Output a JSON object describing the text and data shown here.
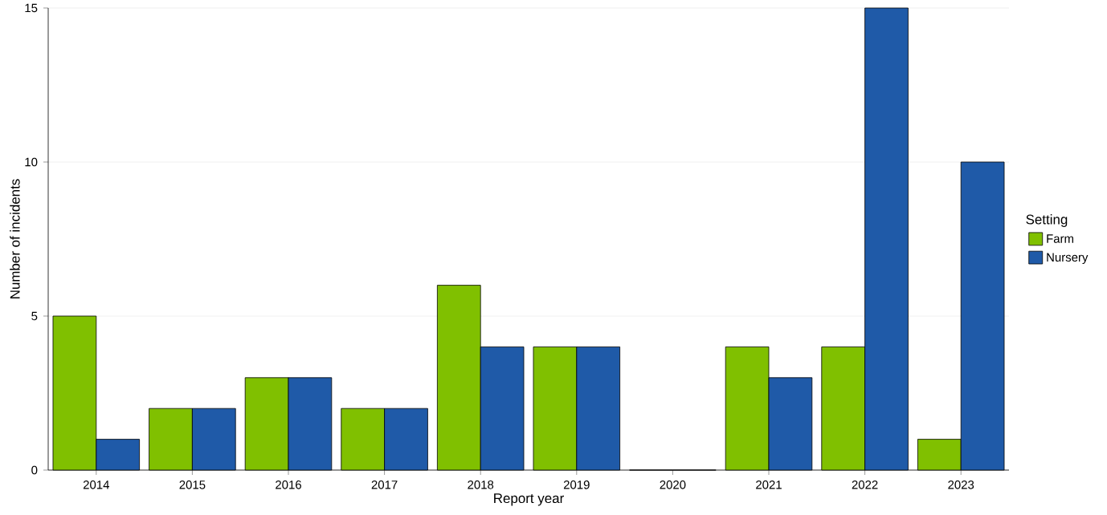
{
  "chart_data": {
    "type": "bar",
    "xlabel": "Report year",
    "ylabel": "Number of incidents",
    "legend_title": "Setting",
    "categories": [
      "2014",
      "2015",
      "2016",
      "2017",
      "2018",
      "2019",
      "2020",
      "2021",
      "2022",
      "2023"
    ],
    "series": [
      {
        "name": "Farm",
        "color": "#80c000",
        "values": [
          5,
          2,
          3,
          2,
          6,
          4,
          0,
          4,
          4,
          1
        ]
      },
      {
        "name": "Nursery",
        "color": "#1f5aa8",
        "values": [
          1,
          2,
          3,
          2,
          4,
          4,
          0,
          3,
          15,
          10
        ]
      }
    ],
    "ylim": [
      0,
      15
    ],
    "yticks": [
      0,
      5,
      10,
      15
    ],
    "grid": "y",
    "legend": "right"
  }
}
